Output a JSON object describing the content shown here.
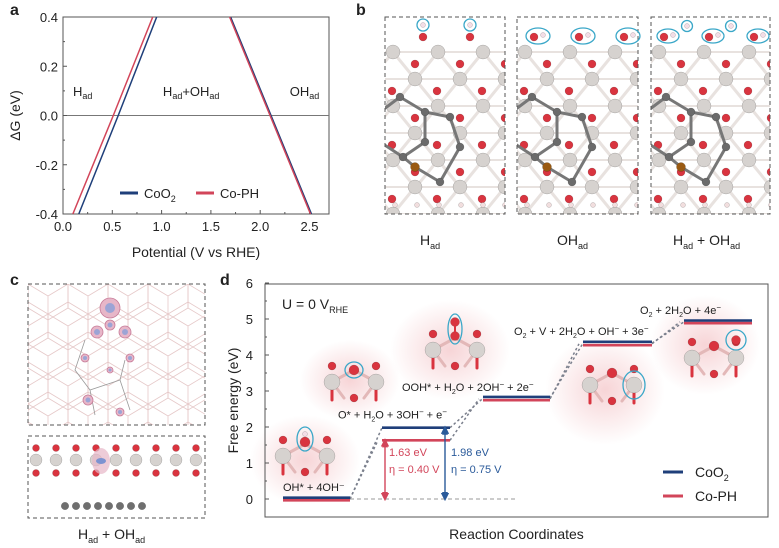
{
  "panels": {
    "a": {
      "letter": "a"
    },
    "b": {
      "letter": "b",
      "labels": [
        {
          "main": "H",
          "sub": "ad"
        },
        {
          "main": "OH",
          "sub": "ad"
        },
        {
          "main": "H",
          "sub": "ad",
          "main2": " + OH",
          "sub2": "ad"
        }
      ]
    },
    "c": {
      "letter": "c",
      "label": {
        "main": "H",
        "sub": "ad",
        "main2": " + OH",
        "sub2": "ad"
      }
    },
    "d": {
      "letter": "d"
    }
  },
  "colors": {
    "coo2": "#1f3f7a",
    "coph": "#d2455a",
    "axis": "#555555",
    "highlight_circle": "#3aa7c8",
    "oxygen": "#d9343f",
    "cobalt": "#cfcac6",
    "carbon": "#6b6b6b",
    "phosphorus": "#9a5a12"
  },
  "chart_data": [
    {
      "panel": "a",
      "type": "line",
      "title": "",
      "xlabel": "Potential (V vs RHE)",
      "ylabel": "ΔG (eV)",
      "xlim": [
        0,
        2.7
      ],
      "ylim": [
        -0.4,
        0.4
      ],
      "xticks": [
        "0.0",
        "0.5",
        "1.0",
        "1.5",
        "2.0",
        "2.5"
      ],
      "yticks": [
        "-0.4",
        "-0.2",
        "0.0",
        "0.2",
        "0.4"
      ],
      "grid": false,
      "hline": 0.0,
      "legend_position": "bottom-center",
      "region_labels": [
        {
          "main": "H",
          "sub": "ad",
          "x": 0.2,
          "y": 0.08
        },
        {
          "main": "H",
          "sub": "ad",
          "main2": "+OH",
          "sub2": "ad",
          "x": 1.3,
          "y": 0.08
        },
        {
          "main": "OH",
          "sub": "ad",
          "x": 2.45,
          "y": 0.08
        }
      ],
      "series": [
        {
          "name": "CoO2",
          "legend_main": "CoO",
          "legend_sub": "2",
          "color": "#1f3f7a",
          "segments": [
            {
              "x": [
                0.16,
                0.56,
                0.95
              ],
              "y": [
                -0.4,
                0.0,
                0.4
              ]
            },
            {
              "x": [
                1.7,
                2.11,
                2.52
              ],
              "y": [
                0.4,
                0.0,
                -0.4
              ]
            }
          ]
        },
        {
          "name": "Co-PH",
          "legend_main": "Co-PH",
          "legend_sub": "",
          "color": "#d2455a",
          "segments": [
            {
              "x": [
                0.1,
                0.51,
                0.91
              ],
              "y": [
                -0.4,
                0.0,
                0.4
              ]
            },
            {
              "x": [
                1.69,
                2.1,
                2.51
              ],
              "y": [
                0.4,
                0.0,
                -0.4
              ]
            }
          ]
        }
      ]
    },
    {
      "panel": "d",
      "type": "line",
      "title": "",
      "annotation": {
        "main": "U = 0 V",
        "sub": "RHE"
      },
      "xlabel": "Reaction Coordinates",
      "ylabel": "Free energy (eV)",
      "ylim": [
        -0.5,
        6
      ],
      "yticks": [
        "0",
        "1",
        "2",
        "3",
        "4",
        "5",
        "6"
      ],
      "grid": false,
      "legend_position": "bottom-right",
      "categories": [
        "OH* + 4OH⁻",
        "O* + H₂O + 3OH⁻ + e⁻",
        "OOH* + H₂O + 2OH⁻ + 2e⁻",
        "O₂ + V + 2H₂O + OH⁻ + 3e⁻",
        "O₂ + 2H₂O + 4e⁻"
      ],
      "series": [
        {
          "name": "CoO2",
          "legend_main": "CoO",
          "legend_sub": "2",
          "color": "#1f3f7a",
          "values": [
            0.0,
            1.98,
            2.8,
            4.33,
            4.92
          ]
        },
        {
          "name": "Co-PH",
          "legend_main": "Co-PH",
          "legend_sub": "",
          "color": "#d2455a",
          "values": [
            0.0,
            1.63,
            2.78,
            4.31,
            4.92
          ]
        }
      ],
      "step_labels": [
        {
          "parts": [
            [
              "OH*",
              ""
            ],
            [
              " + 4OH",
              "⁻"
            ]
          ]
        },
        {
          "parts": [
            [
              "O* + H",
              ""
            ],
            [
              "2",
              "sub"
            ],
            [
              "O + 3OH",
              ""
            ],
            [
              "−",
              "sup"
            ],
            [
              " + e",
              ""
            ],
            [
              "−",
              "sup"
            ]
          ]
        },
        {
          "parts": [
            [
              "OOH* + H",
              ""
            ],
            [
              "2",
              "sub"
            ],
            [
              "O + 2OH",
              ""
            ],
            [
              "−",
              "sup"
            ],
            [
              " + 2e",
              ""
            ],
            [
              "−",
              "sup"
            ]
          ]
        },
        {
          "parts": [
            [
              "O",
              ""
            ],
            [
              "2",
              "sub"
            ],
            [
              " + V + 2H",
              ""
            ],
            [
              "2",
              "sub"
            ],
            [
              "O + OH",
              ""
            ],
            [
              "−",
              "sup"
            ],
            [
              " + 3e",
              ""
            ],
            [
              "−",
              "sup"
            ]
          ]
        },
        {
          "parts": [
            [
              "O",
              ""
            ],
            [
              "2",
              "sub"
            ],
            [
              " + 2H",
              ""
            ],
            [
              "2",
              "sub"
            ],
            [
              "O + 4e",
              ""
            ],
            [
              "−",
              "sup"
            ]
          ]
        }
      ],
      "barrier_annotations": [
        {
          "series": "Co-PH",
          "energy": "1.63 eV",
          "eta_label": "η = 0.40 V",
          "color": "#d2455a"
        },
        {
          "series": "CoO2",
          "energy": "1.98 eV",
          "eta_label": "η = 0.75 V",
          "color": "#2a5a9a"
        }
      ]
    }
  ]
}
